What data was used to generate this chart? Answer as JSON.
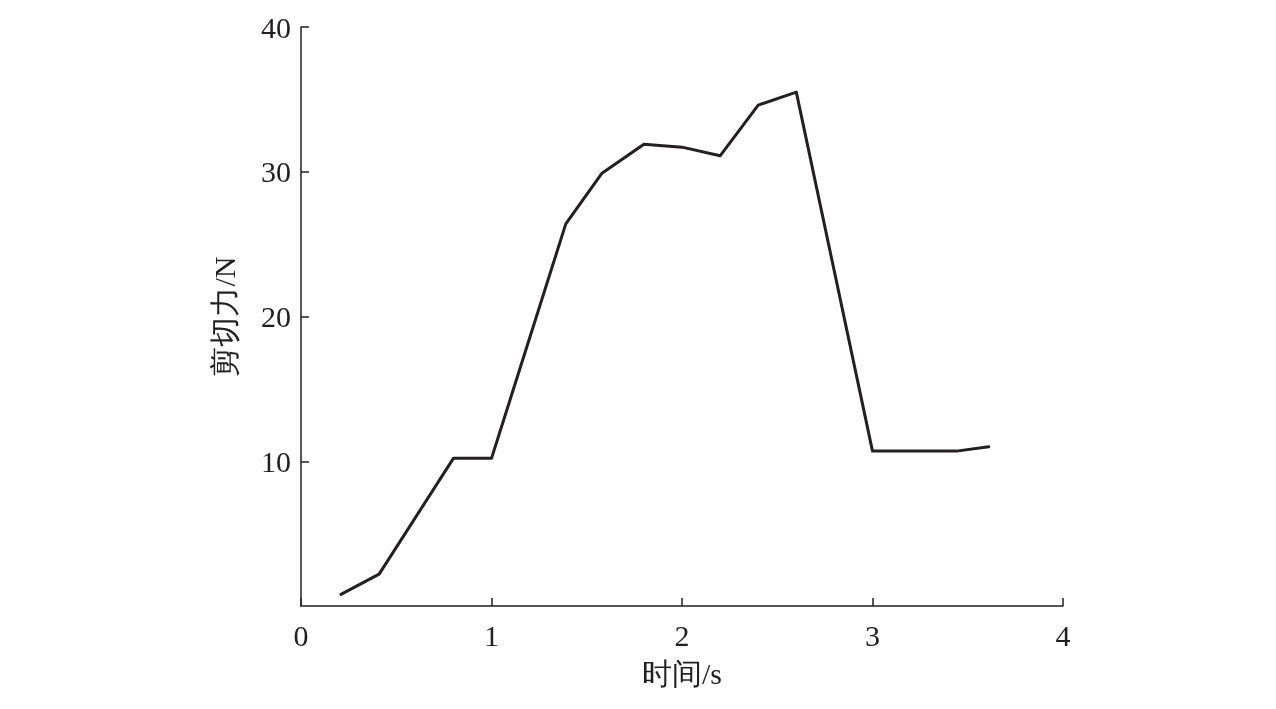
{
  "chart_data": {
    "type": "line",
    "xlabel": "时间/s",
    "ylabel": "剪切力/N",
    "x": [
      0.21,
      0.41,
      0.8,
      1.0,
      1.39,
      1.58,
      1.8,
      2.0,
      2.2,
      2.4,
      2.6,
      3.0,
      3.44,
      3.61
    ],
    "series": [
      {
        "color": "#231f20",
        "values": [
          0.8,
          2.2,
          10.2,
          10.2,
          26.4,
          29.9,
          31.9,
          31.7,
          31.1,
          34.6,
          35.5,
          10.7,
          10.7,
          11.0
        ]
      }
    ],
    "xlim": [
      0,
      4
    ],
    "xticks": [
      0,
      1,
      2,
      3,
      4
    ],
    "ylim": [
      0,
      40
    ],
    "yticks": [
      10,
      20,
      30,
      40
    ],
    "grid": false,
    "marker": "none",
    "line_style": "solid"
  }
}
